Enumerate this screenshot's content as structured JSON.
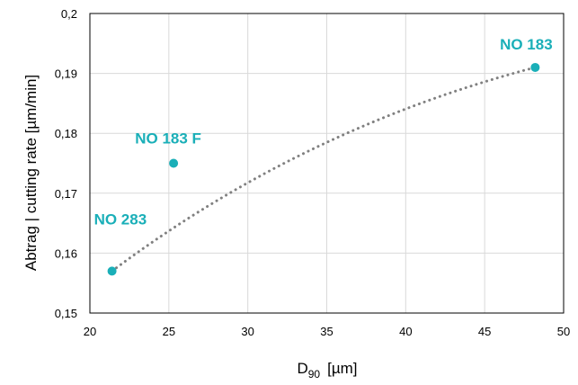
{
  "chart_data": {
    "type": "scatter",
    "xlabel": {
      "main": "D",
      "sub": "90",
      "unit": "[µm]"
    },
    "ylabel": "Abtrag | cutting rate [µm/min]",
    "xlim": [
      20,
      50
    ],
    "ylim": [
      0.15,
      0.2
    ],
    "x_ticks": [
      "20",
      "25",
      "30",
      "35",
      "40",
      "45",
      "50"
    ],
    "y_ticks": [
      "0,15",
      "0,16",
      "0,17",
      "0,18",
      "0,19",
      "0,2"
    ],
    "grid": true,
    "points": [
      {
        "label": "NO 283",
        "x": 21.4,
        "y": 0.157
      },
      {
        "label": "NO 183 F",
        "x": 25.3,
        "y": 0.175
      },
      {
        "label": "NO 183",
        "x": 48.2,
        "y": 0.191
      }
    ],
    "trendline": {
      "style": "dotted",
      "color": "#808080",
      "x": [
        21.4,
        48.2
      ],
      "y": [
        0.157,
        0.191
      ]
    },
    "colors": {
      "points": "#1AAFB8",
      "labels": "#1AAFB8",
      "grid": "#D9D9D9",
      "trend": "#808080"
    }
  }
}
